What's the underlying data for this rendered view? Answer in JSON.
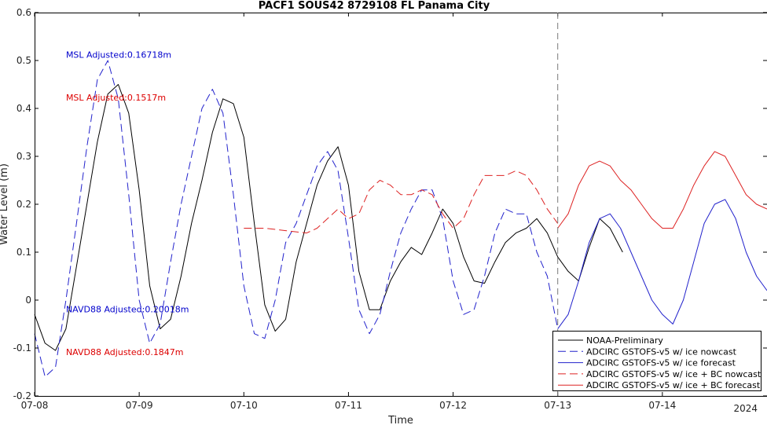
{
  "chart_data": {
    "type": "line",
    "title": "PACF1 SOUS42 8729108 FL Panama City",
    "xlabel": "Time",
    "ylabel": "Water Level (m)",
    "year_label": "2024",
    "x_unit": "days",
    "xlim": [
      0,
      7.0
    ],
    "ylim": [
      -0.2,
      0.6
    ],
    "x_ticks": [
      {
        "x": 0,
        "label": "07-08"
      },
      {
        "x": 1,
        "label": "07-09"
      },
      {
        "x": 2,
        "label": "07-10"
      },
      {
        "x": 3,
        "label": "07-11"
      },
      {
        "x": 4,
        "label": "07-12"
      },
      {
        "x": 5,
        "label": "07-13"
      },
      {
        "x": 6,
        "label": "07-14"
      }
    ],
    "y_ticks": [
      -0.2,
      -0.1,
      0,
      0.1,
      0.2,
      0.3,
      0.4,
      0.5,
      0.6
    ],
    "nowcast_forecast_boundary_x": 5.0,
    "annotations": [
      {
        "text": "MSL Adjusted:0.16718m",
        "color": "#0000cc",
        "x": 0.3,
        "y": 0.506
      },
      {
        "text": "MSL Adjusted:0.1517m",
        "color": "#dd0000",
        "x": 0.3,
        "y": 0.416
      },
      {
        "text": "NAVD88 Adjusted:0.20018m",
        "color": "#0000cc",
        "x": 0.3,
        "y": -0.025
      },
      {
        "text": "NAVD88 Adjusted:0.1847m",
        "color": "#dd0000",
        "x": 0.3,
        "y": -0.115
      }
    ],
    "legend_position": "bottom-right",
    "series": [
      {
        "name": "NOAA-Preliminary",
        "color": "#000000",
        "dash": "solid",
        "x": [
          0.0,
          0.1,
          0.2,
          0.3,
          0.4,
          0.5,
          0.6,
          0.7,
          0.8,
          0.9,
          1.0,
          1.1,
          1.2,
          1.3,
          1.4,
          1.5,
          1.6,
          1.7,
          1.8,
          1.9,
          2.0,
          2.1,
          2.2,
          2.3,
          2.4,
          2.5,
          2.6,
          2.7,
          2.8,
          2.9,
          3.0,
          3.1,
          3.2,
          3.3,
          3.4,
          3.5,
          3.6,
          3.7,
          3.8,
          3.9,
          4.0,
          4.1,
          4.2,
          4.3,
          4.4,
          4.5,
          4.6,
          4.7,
          4.8,
          4.9,
          5.0,
          5.1,
          5.2,
          5.3,
          5.4,
          5.5,
          5.62
        ],
        "y": [
          -0.03,
          -0.09,
          -0.105,
          -0.06,
          0.07,
          0.2,
          0.33,
          0.43,
          0.45,
          0.39,
          0.23,
          0.03,
          -0.06,
          -0.04,
          0.05,
          0.16,
          0.25,
          0.35,
          0.42,
          0.41,
          0.34,
          0.16,
          -0.01,
          -0.065,
          -0.04,
          0.08,
          0.16,
          0.24,
          0.29,
          0.32,
          0.24,
          0.06,
          -0.02,
          -0.02,
          0.04,
          0.08,
          0.11,
          0.095,
          0.14,
          0.19,
          0.16,
          0.09,
          0.04,
          0.035,
          0.08,
          0.12,
          0.14,
          0.15,
          0.17,
          0.14,
          0.09,
          0.06,
          0.04,
          0.11,
          0.17,
          0.15,
          0.1
        ]
      },
      {
        "name": "ADCIRC GSTOFS-v5 w/ ice nowcast",
        "color": "#2222cc",
        "dash": "dashed",
        "x": [
          0.0,
          0.1,
          0.2,
          0.3,
          0.4,
          0.5,
          0.6,
          0.7,
          0.8,
          0.9,
          1.0,
          1.1,
          1.2,
          1.3,
          1.4,
          1.5,
          1.6,
          1.7,
          1.8,
          1.9,
          2.0,
          2.1,
          2.2,
          2.3,
          2.4,
          2.5,
          2.6,
          2.7,
          2.8,
          2.9,
          3.0,
          3.1,
          3.2,
          3.3,
          3.4,
          3.5,
          3.6,
          3.7,
          3.8,
          3.9,
          4.0,
          4.1,
          4.2,
          4.3,
          4.4,
          4.5,
          4.6,
          4.7,
          4.8,
          4.9,
          5.0
        ],
        "y": [
          -0.07,
          -0.16,
          -0.14,
          0.0,
          0.16,
          0.32,
          0.46,
          0.5,
          0.42,
          0.22,
          0.0,
          -0.09,
          -0.05,
          0.08,
          0.2,
          0.3,
          0.4,
          0.44,
          0.39,
          0.22,
          0.03,
          -0.07,
          -0.08,
          0.0,
          0.12,
          0.16,
          0.22,
          0.28,
          0.31,
          0.27,
          0.13,
          -0.02,
          -0.07,
          -0.03,
          0.06,
          0.14,
          0.19,
          0.23,
          0.23,
          0.17,
          0.04,
          -0.03,
          -0.02,
          0.05,
          0.14,
          0.19,
          0.18,
          0.18,
          0.1,
          0.05,
          -0.06
        ]
      },
      {
        "name": "ADCIRC GSTOFS-v5 w/ ice forecast",
        "color": "#2222cc",
        "dash": "solid",
        "x": [
          5.0,
          5.1,
          5.2,
          5.3,
          5.4,
          5.5,
          5.6,
          5.7,
          5.8,
          5.9,
          6.0,
          6.1,
          6.2,
          6.3,
          6.4,
          6.5,
          6.6,
          6.7,
          6.8,
          6.9,
          7.0
        ],
        "y": [
          -0.06,
          -0.03,
          0.04,
          0.12,
          0.17,
          0.18,
          0.15,
          0.1,
          0.05,
          0.0,
          -0.03,
          -0.05,
          0.0,
          0.08,
          0.16,
          0.2,
          0.21,
          0.17,
          0.1,
          0.05,
          0.02
        ]
      },
      {
        "name": "ADCIRC GSTOFS-v5 w/ ice + BC nowcast",
        "color": "#dd2222",
        "dash": "dashed",
        "x": [
          2.0,
          2.2,
          2.4,
          2.6,
          2.7,
          2.8,
          2.9,
          3.0,
          3.1,
          3.2,
          3.3,
          3.4,
          3.5,
          3.6,
          3.7,
          3.8,
          3.9,
          4.0,
          4.1,
          4.2,
          4.3,
          4.4,
          4.5,
          4.6,
          4.7,
          4.8,
          4.9,
          5.0
        ],
        "y": [
          0.15,
          0.15,
          0.145,
          0.14,
          0.15,
          0.17,
          0.19,
          0.17,
          0.18,
          0.23,
          0.25,
          0.24,
          0.22,
          0.22,
          0.23,
          0.22,
          0.18,
          0.15,
          0.17,
          0.22,
          0.26,
          0.26,
          0.26,
          0.27,
          0.26,
          0.23,
          0.19,
          0.16
        ]
      },
      {
        "name": "ADCIRC GSTOFS-v5 w/ ice + BC forecast",
        "color": "#dd2222",
        "dash": "solid",
        "x": [
          5.0,
          5.1,
          5.2,
          5.3,
          5.4,
          5.5,
          5.6,
          5.7,
          5.8,
          5.9,
          6.0,
          6.1,
          6.2,
          6.3,
          6.4,
          6.5,
          6.6,
          6.7,
          6.8,
          6.9,
          7.0
        ],
        "y": [
          0.15,
          0.18,
          0.24,
          0.28,
          0.29,
          0.28,
          0.25,
          0.23,
          0.2,
          0.17,
          0.15,
          0.15,
          0.19,
          0.24,
          0.28,
          0.31,
          0.3,
          0.26,
          0.22,
          0.2,
          0.19
        ]
      }
    ]
  }
}
